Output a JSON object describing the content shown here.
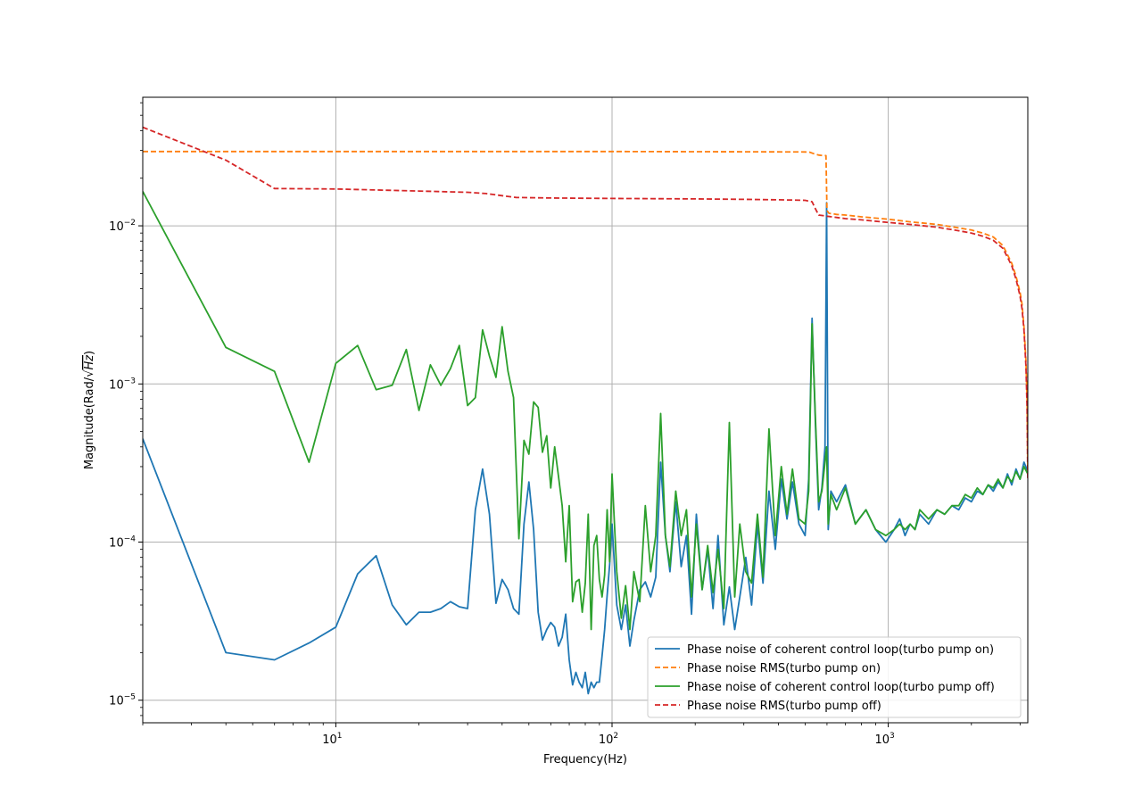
{
  "chart_data": {
    "type": "line",
    "title": "",
    "xlabel": "Frequency(Hz)",
    "ylabel_prefix": "Magnitude(Rad/",
    "ylabel_root": "Hz",
    "ylabel_suffix": ")",
    "xscale": "log",
    "yscale": "log",
    "xlim": [
      2,
      3200
    ],
    "ylim": [
      7.2e-06,
      0.065
    ],
    "grid": true,
    "legend_position": "lower-right",
    "x_ticks": [
      {
        "value": 10,
        "mantissa": "10",
        "exp": "1"
      },
      {
        "value": 100,
        "mantissa": "10",
        "exp": "2"
      },
      {
        "value": 1000,
        "mantissa": "10",
        "exp": "3"
      }
    ],
    "y_ticks": [
      {
        "value": 1e-05,
        "mantissa": "10",
        "exp": "−5"
      },
      {
        "value": 0.0001,
        "mantissa": "10",
        "exp": "−4"
      },
      {
        "value": 0.001,
        "mantissa": "10",
        "exp": "−3"
      },
      {
        "value": 0.01,
        "mantissa": "10",
        "exp": "−2"
      }
    ],
    "series": [
      {
        "name": "Phase noise of coherent control loop(turbo pump on)",
        "color": "#1f77b4",
        "dash": "solid",
        "x": [
          2,
          4,
          6,
          8,
          10,
          12,
          14,
          16,
          18,
          20,
          22,
          24,
          26,
          28,
          30,
          32,
          34,
          36,
          38,
          40,
          42,
          44,
          46,
          48,
          50,
          52,
          54,
          56,
          58,
          60,
          62,
          64,
          66,
          68,
          70,
          72,
          74,
          76,
          78,
          80,
          82,
          84,
          86,
          88,
          90,
          92,
          94,
          96,
          98,
          100,
          104,
          108,
          112,
          116,
          120,
          126,
          132,
          138,
          144,
          150,
          156,
          162,
          170,
          178,
          186,
          194,
          202,
          212,
          222,
          232,
          242,
          254,
          266,
          278,
          290,
          305,
          320,
          336,
          352,
          370,
          390,
          410,
          430,
          450,
          475,
          500,
          515,
          530,
          545,
          560,
          575,
          590,
          598,
          606,
          620,
          650,
          700,
          760,
          830,
          900,
          980,
          1050,
          1100,
          1150,
          1200,
          1250,
          1300,
          1400,
          1500,
          1600,
          1700,
          1800,
          1900,
          2000,
          2100,
          2200,
          2300,
          2400,
          2500,
          2600,
          2700,
          2800,
          2900,
          3000,
          3100,
          3200
        ],
        "values": [
          0.00045,
          2e-05,
          1.8e-05,
          2.3e-05,
          2.9e-05,
          6.3e-05,
          8.2e-05,
          4e-05,
          3e-05,
          3.6e-05,
          3.6e-05,
          3.8e-05,
          4.2e-05,
          3.9e-05,
          3.8e-05,
          0.00016,
          0.00029,
          0.00015,
          4.1e-05,
          5.8e-05,
          5e-05,
          3.8e-05,
          3.5e-05,
          0.00013,
          0.00024,
          0.00012,
          3.6e-05,
          2.4e-05,
          2.8e-05,
          3.1e-05,
          2.9e-05,
          2.2e-05,
          2.5e-05,
          3.5e-05,
          1.8e-05,
          1.25e-05,
          1.5e-05,
          1.3e-05,
          1.2e-05,
          1.5e-05,
          1.1e-05,
          1.3e-05,
          1.2e-05,
          1.3e-05,
          1.3e-05,
          1.9e-05,
          2.8e-05,
          4.6e-05,
          7.2e-05,
          0.00013,
          4e-05,
          2.8e-05,
          4e-05,
          2.2e-05,
          3.2e-05,
          5e-05,
          5.6e-05,
          4.5e-05,
          6e-05,
          0.00032,
          0.00011,
          6.5e-05,
          0.00018,
          7e-05,
          0.00011,
          3.5e-05,
          0.00015,
          5e-05,
          9e-05,
          3.8e-05,
          0.00011,
          3e-05,
          5.2e-05,
          2.8e-05,
          4.5e-05,
          8e-05,
          4e-05,
          0.00013,
          5.5e-05,
          0.00021,
          9e-05,
          0.00025,
          0.00014,
          0.00024,
          0.00013,
          0.00011,
          0.00025,
          0.0026,
          0.00055,
          0.00016,
          0.00022,
          0.0004,
          0.014,
          0.00012,
          0.00021,
          0.00018,
          0.00023,
          0.00013,
          0.00016,
          0.00012,
          0.0001,
          0.00012,
          0.00014,
          0.00011,
          0.00013,
          0.00012,
          0.00015,
          0.00013,
          0.00016,
          0.00015,
          0.00017,
          0.00016,
          0.00019,
          0.00018,
          0.00021,
          0.0002,
          0.00023,
          0.00021,
          0.00024,
          0.00022,
          0.00027,
          0.00023,
          0.00029,
          0.00025,
          0.00032,
          0.00028
        ]
      },
      {
        "name": "Phase noise RMS(turbo pump on)",
        "color": "#ff7f0e",
        "dash": "dashed",
        "x": [
          2,
          10,
          100,
          300,
          500,
          520,
          540,
          560,
          580,
          595,
          600,
          610,
          650,
          700,
          800,
          1000,
          1200,
          1500,
          1800,
          2000,
          2200,
          2400,
          2600,
          2800,
          2900,
          3000,
          3050,
          3100,
          3150,
          3180,
          3200
        ],
        "values": [
          0.0295,
          0.0295,
          0.0295,
          0.0294,
          0.0293,
          0.0292,
          0.0285,
          0.028,
          0.0278,
          0.0278,
          0.0125,
          0.012,
          0.0118,
          0.0117,
          0.0114,
          0.011,
          0.0106,
          0.0102,
          0.0097,
          0.0094,
          0.009,
          0.0085,
          0.0075,
          0.0058,
          0.0048,
          0.0038,
          0.0032,
          0.0023,
          0.0014,
          0.0008,
          0.00028
        ]
      },
      {
        "name": "Phase noise of coherent control loop(turbo pump off)",
        "color": "#2ca02c",
        "dash": "solid",
        "x": [
          2,
          4,
          6,
          8,
          10,
          12,
          14,
          16,
          18,
          20,
          22,
          24,
          26,
          28,
          30,
          32,
          34,
          36,
          38,
          40,
          42,
          44,
          46,
          48,
          50,
          52,
          54,
          56,
          58,
          60,
          62,
          64,
          66,
          68,
          70,
          72,
          74,
          76,
          78,
          80,
          82,
          84,
          86,
          88,
          90,
          92,
          94,
          96,
          98,
          100,
          104,
          108,
          112,
          116,
          120,
          126,
          132,
          138,
          144,
          150,
          156,
          162,
          170,
          178,
          186,
          194,
          202,
          212,
          222,
          232,
          242,
          254,
          266,
          278,
          290,
          305,
          320,
          336,
          352,
          370,
          390,
          410,
          430,
          450,
          475,
          500,
          515,
          530,
          545,
          560,
          575,
          590,
          598,
          606,
          620,
          650,
          700,
          760,
          830,
          900,
          980,
          1050,
          1100,
          1150,
          1200,
          1250,
          1300,
          1400,
          1500,
          1600,
          1700,
          1800,
          1900,
          2000,
          2100,
          2200,
          2300,
          2400,
          2500,
          2600,
          2700,
          2800,
          2900,
          3000,
          3100,
          3200
        ],
        "values": [
          0.0165,
          0.0017,
          0.0012,
          0.00032,
          0.00135,
          0.00175,
          0.00092,
          0.00098,
          0.00165,
          0.00068,
          0.00132,
          0.00098,
          0.00125,
          0.00175,
          0.00073,
          0.00082,
          0.0022,
          0.0015,
          0.0011,
          0.0023,
          0.0012,
          0.00082,
          0.000105,
          0.00044,
          0.00036,
          0.00077,
          0.00071,
          0.00037,
          0.00047,
          0.00022,
          0.0004,
          0.00026,
          0.00017,
          7.5e-05,
          0.00017,
          4.2e-05,
          5.6e-05,
          5.8e-05,
          3.6e-05,
          5.5e-05,
          0.00015,
          2.8e-05,
          9.5e-05,
          0.00011,
          5.8e-05,
          4.5e-05,
          6.2e-05,
          0.00016,
          7.5e-05,
          0.00027,
          6.5e-05,
          3.3e-05,
          5.3e-05,
          2.8e-05,
          6.5e-05,
          4.2e-05,
          0.00017,
          6.5e-05,
          0.00011,
          0.00065,
          0.00011,
          7e-05,
          0.00021,
          0.00011,
          0.00016,
          4.5e-05,
          0.00013,
          5e-05,
          9.5e-05,
          4.8e-05,
          9e-05,
          3.8e-05,
          0.00057,
          4.5e-05,
          0.00013,
          6.5e-05,
          5.5e-05,
          0.00015,
          6e-05,
          0.00052,
          0.00011,
          0.0003,
          0.00015,
          0.00029,
          0.00014,
          0.00013,
          0.00021,
          0.0024,
          0.0006,
          0.00018,
          0.00021,
          0.00032,
          0.0004,
          0.00013,
          0.0002,
          0.00016,
          0.00022,
          0.00013,
          0.00016,
          0.00012,
          0.00011,
          0.00012,
          0.00013,
          0.00012,
          0.00013,
          0.00012,
          0.00016,
          0.00014,
          0.00016,
          0.00015,
          0.00017,
          0.00017,
          0.0002,
          0.00019,
          0.00022,
          0.0002,
          0.00023,
          0.00022,
          0.00025,
          0.00022,
          0.00026,
          0.00024,
          0.00028,
          0.00025,
          0.0003,
          0.00027
        ]
      },
      {
        "name": "Phase noise RMS(turbo pump off)",
        "color": "#d62728",
        "dash": "dashed",
        "x": [
          2,
          4,
          6,
          10,
          20,
          30,
          35,
          40,
          45,
          60,
          100,
          200,
          300,
          400,
          500,
          530,
          545,
          560,
          580,
          600,
          650,
          700,
          800,
          1000,
          1200,
          1500,
          1800,
          2000,
          2200,
          2400,
          2600,
          2800,
          2900,
          3000,
          3050,
          3100,
          3150,
          3180,
          3200
        ],
        "values": [
          0.042,
          0.026,
          0.0172,
          0.0171,
          0.0166,
          0.0163,
          0.016,
          0.0155,
          0.0151,
          0.015,
          0.0149,
          0.0148,
          0.0147,
          0.0146,
          0.0145,
          0.0142,
          0.0128,
          0.0117,
          0.0116,
          0.0115,
          0.0113,
          0.0111,
          0.0109,
          0.0105,
          0.0102,
          0.0098,
          0.0093,
          0.009,
          0.0086,
          0.0081,
          0.0072,
          0.0056,
          0.0046,
          0.0036,
          0.003,
          0.0022,
          0.0013,
          0.0007,
          0.00025
        ]
      }
    ]
  }
}
